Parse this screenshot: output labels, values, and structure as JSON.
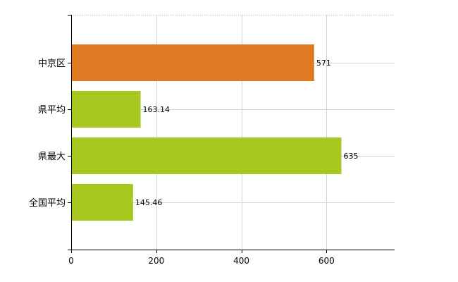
{
  "chart_data": {
    "type": "bar",
    "orientation": "horizontal",
    "categories": [
      "中京区",
      "県平均",
      "県最大",
      "全国平均"
    ],
    "values": [
      571,
      163.14,
      635,
      145.46
    ],
    "value_labels": [
      "571",
      "163.14",
      "635",
      "145.46"
    ],
    "bar_colors": [
      "#e07a22",
      "#a6c81f",
      "#a6c81f",
      "#a6c81f"
    ],
    "x_ticks": [
      0,
      200,
      400,
      600
    ],
    "x_tick_labels": [
      "0",
      "200",
      "400",
      "600"
    ],
    "xlim": [
      0,
      760
    ],
    "title": "",
    "xlabel": "",
    "ylabel": "",
    "grid": true,
    "legend": "none"
  }
}
